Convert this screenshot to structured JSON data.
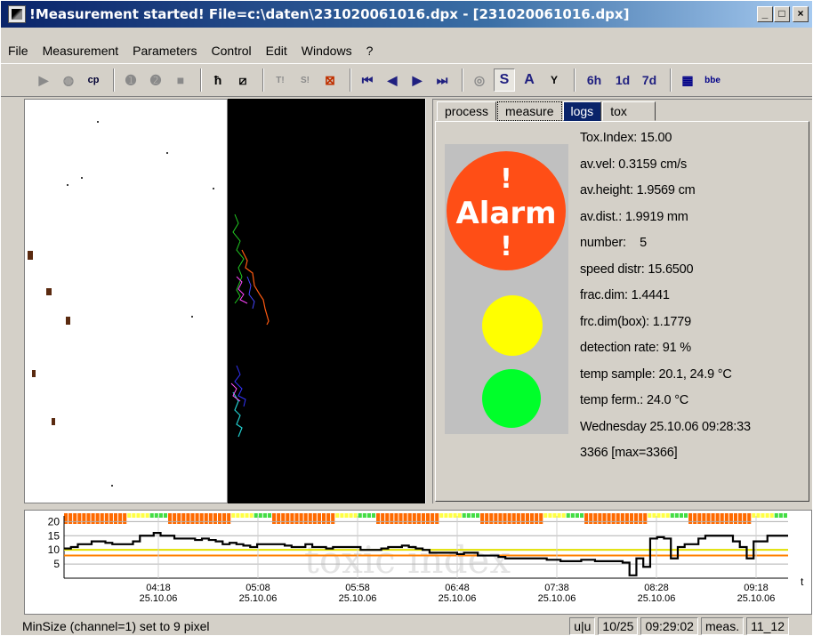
{
  "window": {
    "title": "!Measurement started! File=c:\\daten\\231020061016.dpx - [231020061016.dpx]",
    "minimize_label": "_",
    "maximize_label": "□",
    "close_label": "×"
  },
  "menu": [
    "File",
    "Measurement",
    "Parameters",
    "Control",
    "Edit",
    "Windows",
    "?"
  ],
  "toolbar": {
    "cp_label": "cp",
    "t_label": "T!",
    "s_label": "S!",
    "s_btn": "S",
    "a_btn": "A",
    "y_btn": "Y",
    "h6": "6h",
    "d1": "1d",
    "d7": "7d",
    "bbe": "bbe"
  },
  "tabs": [
    "process",
    "measure",
    "logs",
    "tox"
  ],
  "alarm": {
    "ex": "!",
    "label": "Alarm"
  },
  "stats": [
    "Tox.Index: 15.00",
    "av.vel: 0.3159 cm/s",
    "av.height: 1.9569 cm",
    "av.dist.: 1.9919 mm",
    "number:    5",
    "speed distr: 15.6500",
    "frac.dim: 1.4441",
    "frc.dim(box): 1.1779",
    "detection rate: 91 %",
    "temp sample: 20.1, 24.9 °C",
    "temp ferm.: 24.0 °C",
    "Wednesday 25.10.06 09:28:33",
    "3366 [max=3366]"
  ],
  "chart_data": {
    "type": "line",
    "watermark": "toxic index",
    "xlabel": "t",
    "y_ticks": [
      5,
      10,
      15,
      20
    ],
    "ylim": [
      0,
      22
    ],
    "x_ticks": [
      {
        "time": "04:18",
        "date": "25.10.06"
      },
      {
        "time": "05:08",
        "date": "25.10.06"
      },
      {
        "time": "05:58",
        "date": "25.10.06"
      },
      {
        "time": "06:48",
        "date": "25.10.06"
      },
      {
        "time": "07:38",
        "date": "25.10.06"
      },
      {
        "time": "08:28",
        "date": "25.10.06"
      },
      {
        "time": "09:18",
        "date": "25.10.06"
      }
    ],
    "thresholds": [
      {
        "value": 8,
        "color": "#ff8000"
      },
      {
        "value": 10,
        "color": "#e0e000"
      }
    ],
    "series": [
      {
        "color": "#000000",
        "values": [
          10.5,
          11,
          12,
          12,
          13,
          13,
          12.5,
          12,
          12,
          12,
          13,
          15,
          15,
          16,
          15,
          15,
          14,
          14,
          14,
          13.5,
          14,
          13.5,
          13,
          12,
          12.5,
          12,
          11.5,
          11,
          12,
          12,
          12,
          12,
          11.5,
          11,
          11,
          12,
          11,
          11,
          10.5,
          11,
          11,
          11,
          11,
          10,
          10,
          10,
          10.5,
          11,
          11,
          11.5,
          11,
          10.5,
          10,
          9,
          9,
          9,
          9,
          8.5,
          9,
          9,
          8,
          8,
          8,
          7.5,
          7,
          7,
          7,
          7,
          7,
          7,
          6.5,
          6.5,
          6,
          6,
          6,
          6.5,
          6.5,
          6,
          6,
          6,
          6,
          5.5,
          1,
          7,
          4,
          14,
          14.5,
          14,
          7,
          11,
          12,
          12,
          14,
          15,
          15,
          15,
          15,
          13,
          11,
          7,
          13,
          13,
          15,
          15,
          15
        ]
      }
    ],
    "status_bar_colors": [
      "#ff6a00",
      "#ffff44",
      "#44dd44"
    ]
  },
  "status": {
    "text": "MinSize (channel=1) set to 9 pixel",
    "cells": [
      "u|u",
      "10/25",
      "09:29:02",
      "meas.",
      "11_12"
    ]
  }
}
